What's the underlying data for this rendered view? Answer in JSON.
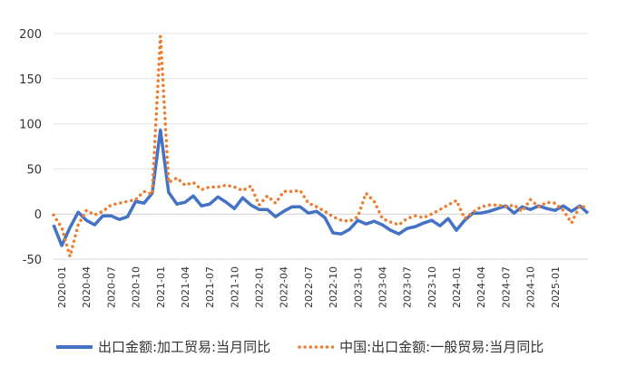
{
  "chart_data": {
    "type": "line",
    "title": "",
    "xlabel": "",
    "ylabel": "",
    "ylim": [
      -50,
      200
    ],
    "yticks": [
      -50,
      0,
      50,
      100,
      150,
      200
    ],
    "grid": "horizontal",
    "legend_position": "bottom",
    "x": [
      "2019-12",
      "2020-01",
      "2020-02",
      "2020-03",
      "2020-04",
      "2020-05",
      "2020-06",
      "2020-07",
      "2020-08",
      "2020-09",
      "2020-10",
      "2020-11",
      "2020-12",
      "2021-01",
      "2021-02",
      "2021-03",
      "2021-04",
      "2021-05",
      "2021-06",
      "2021-07",
      "2021-08",
      "2021-09",
      "2021-10",
      "2021-11",
      "2021-12",
      "2022-01",
      "2022-02",
      "2022-03",
      "2022-04",
      "2022-05",
      "2022-06",
      "2022-07",
      "2022-08",
      "2022-09",
      "2022-10",
      "2022-11",
      "2022-12",
      "2023-01",
      "2023-02",
      "2023-03",
      "2023-04",
      "2023-05",
      "2023-06",
      "2023-07",
      "2023-08",
      "2023-09",
      "2023-10",
      "2023-11",
      "2023-12",
      "2024-01",
      "2024-02",
      "2024-03",
      "2024-04",
      "2024-05",
      "2024-06",
      "2024-07",
      "2024-08",
      "2024-09",
      "2024-10",
      "2024-11",
      "2024-12",
      "2025-01",
      "2025-02",
      "2025-03",
      "2025-04",
      "2025-05"
    ],
    "xtick_labels": [
      "2020-01",
      "2020-04",
      "2020-07",
      "2020-10",
      "2021-01",
      "2021-04",
      "2021-07",
      "2021-10",
      "2022-01",
      "2022-04",
      "2022-07",
      "2022-10",
      "2023-01",
      "2023-04",
      "2023-07",
      "2023-10",
      "2024-01",
      "2024-04",
      "2024-07",
      "2024-10",
      "2025-01"
    ],
    "series": [
      {
        "name": "出口金额:加工贸易:当月同比",
        "color": "#4472C4",
        "style": "solid",
        "values": [
          -12,
          -35,
          -15,
          2,
          -7,
          -12,
          -2,
          -2,
          -6,
          -3,
          14,
          12,
          23,
          93,
          24,
          11,
          13,
          20,
          9,
          11,
          19,
          13,
          6,
          18,
          10,
          5,
          5,
          -3,
          3,
          8,
          8,
          1,
          3,
          -4,
          -21,
          -22,
          -17,
          -7,
          -11,
          -8,
          -12,
          -18,
          -22,
          -16,
          -14,
          -10,
          -7,
          -13,
          -5,
          -18,
          -7,
          1,
          1,
          3,
          6,
          9,
          1,
          8,
          5,
          9,
          6,
          4,
          9,
          3,
          9,
          1
        ]
      },
      {
        "name": "中国:出口金额:一般贸易:当月同比",
        "color": "#ED7D31",
        "style": "dotted",
        "values": [
          -1,
          -15,
          -47,
          -12,
          4,
          -1,
          3,
          10,
          12,
          14,
          16,
          25,
          22,
          197,
          35,
          40,
          32,
          35,
          27,
          30,
          30,
          32,
          30,
          26,
          31,
          10,
          20,
          12,
          25,
          25,
          26,
          12,
          8,
          3,
          -3,
          -7,
          -8,
          -3,
          23,
          14,
          -5,
          -9,
          -12,
          -5,
          -2,
          -4,
          0,
          5,
          10,
          15,
          -5,
          2,
          8,
          10,
          10,
          8,
          10,
          3,
          16,
          8,
          13,
          12,
          4,
          -10,
          9,
          7
        ]
      }
    ]
  }
}
